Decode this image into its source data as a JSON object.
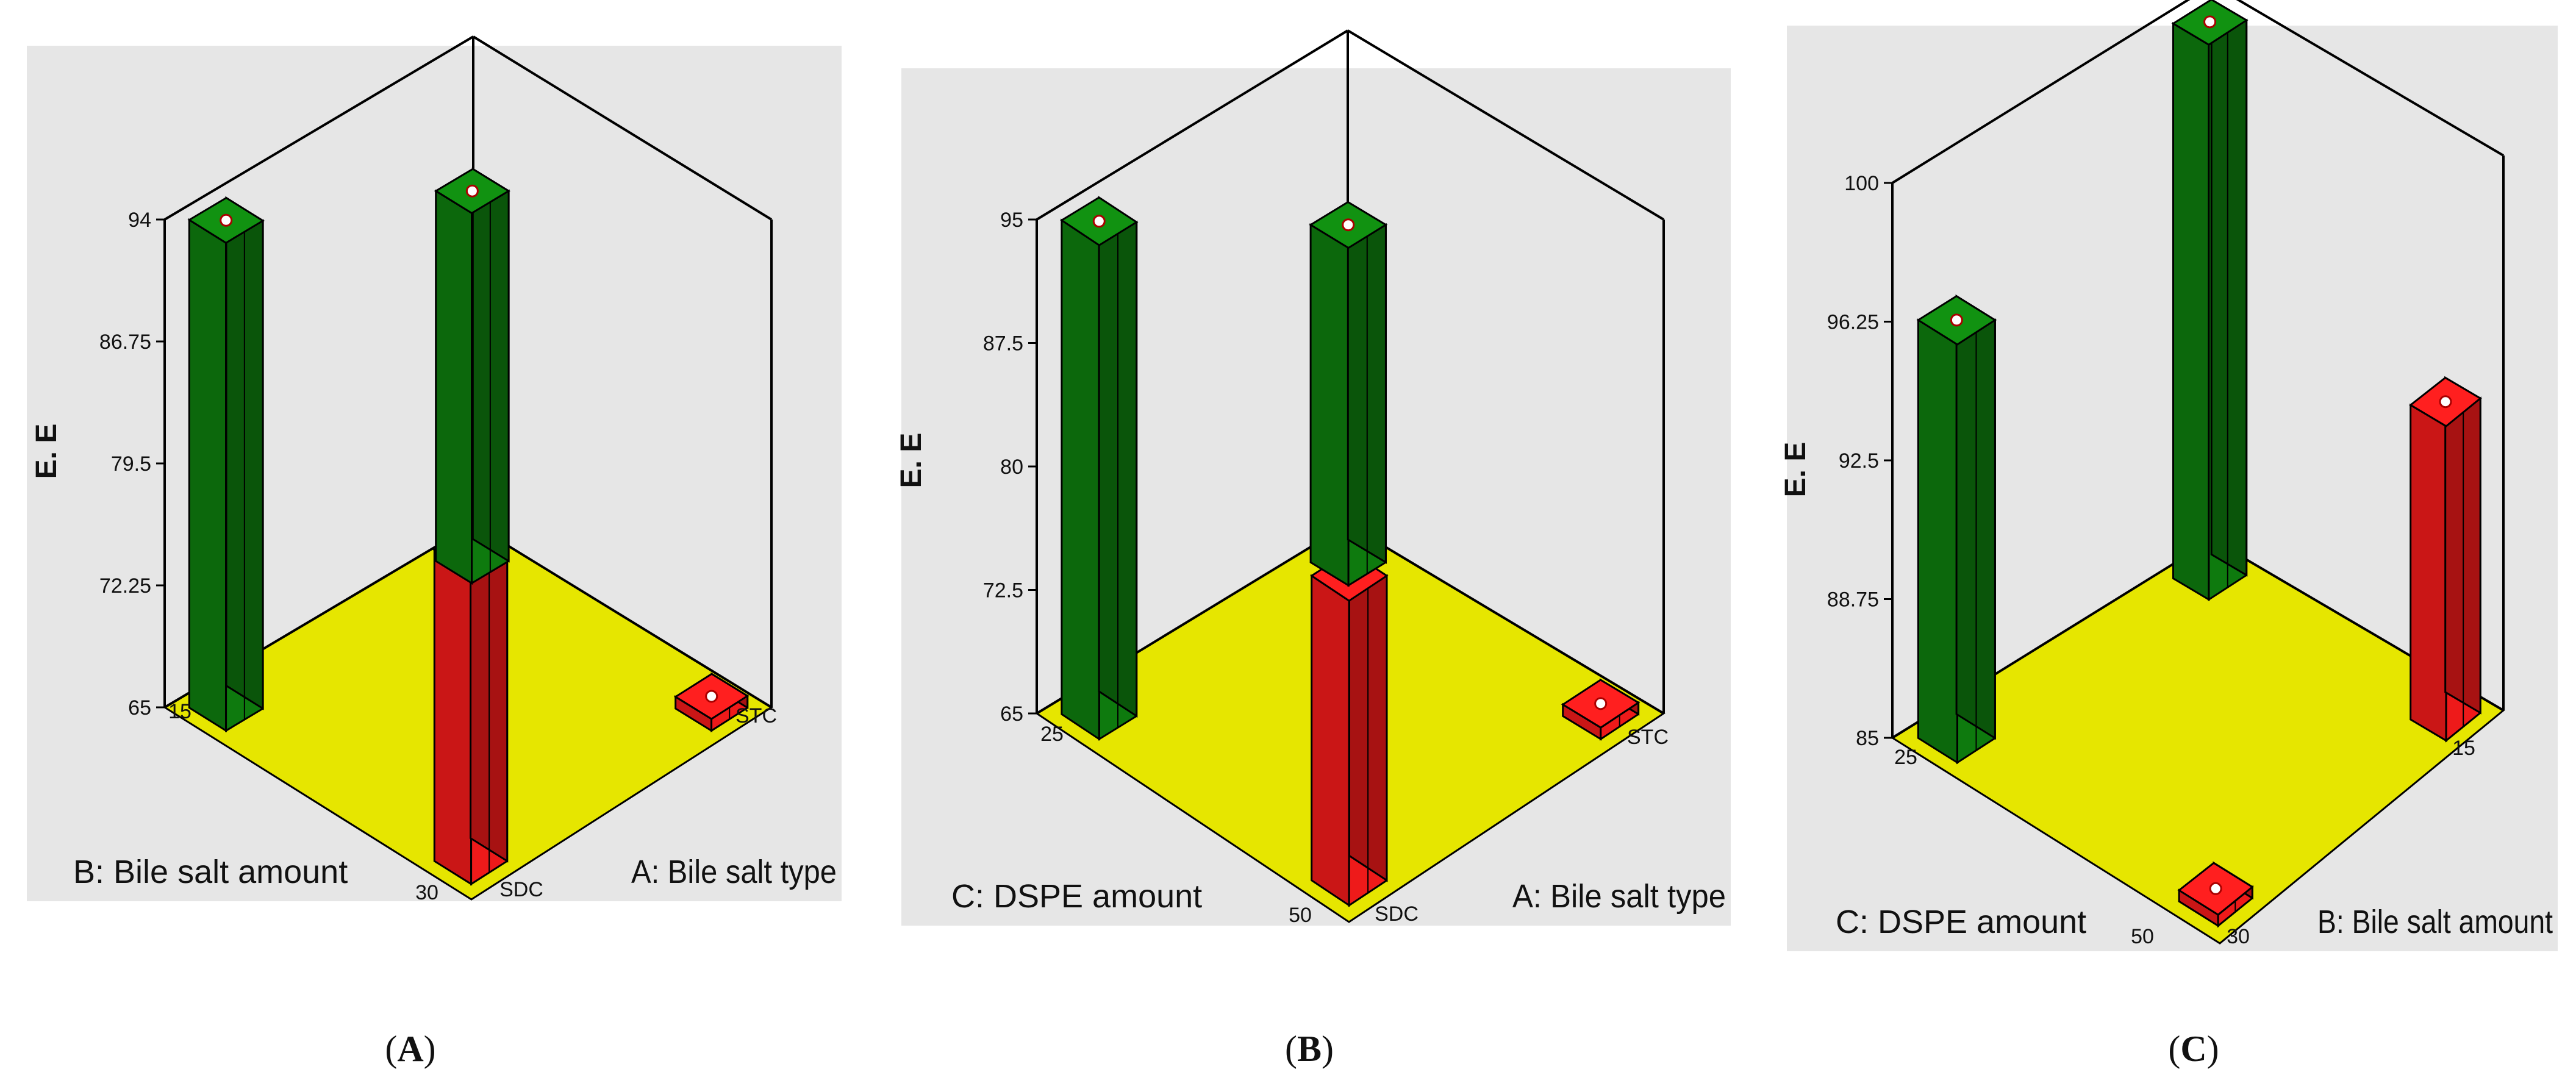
{
  "chart_data": [
    {
      "type": "bar",
      "panel_label": "A",
      "yaxis_title": "E. E",
      "y_ticks": [
        "65",
        "72.25",
        "79.5",
        "86.75",
        "94"
      ],
      "ylim": [
        65,
        94
      ],
      "x_factor": {
        "title": "A: Bile salt type",
        "levels": [
          "SDC",
          "STC"
        ]
      },
      "depth_factor": {
        "title": "B: Bile salt amount",
        "levels": [
          "15",
          "30"
        ]
      },
      "bars": [
        {
          "x": "SDC",
          "depth": "15",
          "value": 94,
          "color": "#0e7a0e"
        },
        {
          "x": "SDC",
          "depth": "30",
          "value": 83.5,
          "color": "#ee1a1a"
        },
        {
          "x": "STC",
          "depth": "15",
          "value": 87,
          "color": "#0e7a0e"
        },
        {
          "x": "STC",
          "depth": "30",
          "value": 65.7,
          "color": "#ee1a1a"
        }
      ],
      "colors": {
        "positive": "#0e7a0e",
        "negative": "#ee1a1a",
        "floor": "#e6e600",
        "background": "#e6e6e6"
      }
    },
    {
      "type": "bar",
      "panel_label": "B",
      "yaxis_title": "E. E",
      "y_ticks": [
        "65",
        "72.5",
        "80",
        "87.5",
        "95"
      ],
      "ylim": [
        65,
        95
      ],
      "x_factor": {
        "title": "A: Bile salt type",
        "levels": [
          "SDC",
          "STC"
        ]
      },
      "depth_factor": {
        "title": "C: DSPE amount",
        "levels": [
          "25",
          "50"
        ]
      },
      "bars": [
        {
          "x": "SDC",
          "depth": "25",
          "value": 95,
          "color": "#0e7a0e"
        },
        {
          "x": "SDC",
          "depth": "50",
          "value": 83.5,
          "color": "#ee1a1a"
        },
        {
          "x": "STC",
          "depth": "25",
          "value": 85.5,
          "color": "#0e7a0e"
        },
        {
          "x": "STC",
          "depth": "50",
          "value": 65.7,
          "color": "#ee1a1a"
        }
      ],
      "colors": {
        "positive": "#0e7a0e",
        "negative": "#ee1a1a",
        "floor": "#e6e600",
        "background": "#e6e6e6"
      }
    },
    {
      "type": "bar",
      "panel_label": "C",
      "yaxis_title": "E. E",
      "y_ticks": [
        "85",
        "88.75",
        "92.5",
        "96.25",
        "100"
      ],
      "ylim": [
        85,
        100
      ],
      "x_factor": {
        "title": "B: Bile salt amount",
        "levels": [
          "30",
          "15"
        ]
      },
      "depth_factor": {
        "title": "C: DSPE amount",
        "levels": [
          "25",
          "50"
        ]
      },
      "bars": [
        {
          "x": "30",
          "depth": "25",
          "value": 96.3,
          "color": "#0e7a0e"
        },
        {
          "x": "30",
          "depth": "50",
          "value": 85.3,
          "color": "#ee1a1a"
        },
        {
          "x": "15",
          "depth": "25",
          "value": 100,
          "color": "#0e7a0e"
        },
        {
          "x": "15",
          "depth": "50",
          "value": 93.5,
          "color": "#ee1a1a"
        }
      ],
      "colors": {
        "positive": "#0e7a0e",
        "negative": "#ee1a1a",
        "floor": "#e6e600",
        "background": "#e6e6e6"
      }
    }
  ],
  "captions": [
    "A",
    "B",
    "C"
  ]
}
